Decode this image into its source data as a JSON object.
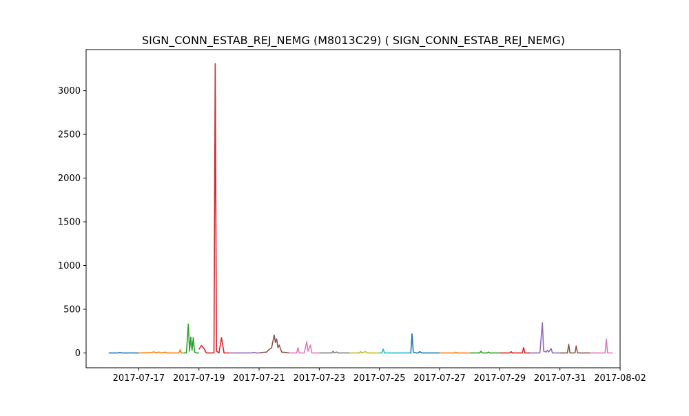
{
  "chart_data": {
    "type": "line",
    "title": "SIGN_CONN_ESTAB_REJ_NEMG (M8013C29) ( SIGN_CONN_ESTAB_REJ_NEMG)",
    "xlabel": "",
    "ylabel": "",
    "x_is_date": true,
    "xlim": [
      "2017-07-15T06:00",
      "2017-08-02T00:00"
    ],
    "ylim": [
      -170,
      3470
    ],
    "xticks": [
      "2017-07-17",
      "2017-07-19",
      "2017-07-21",
      "2017-07-23",
      "2017-07-25",
      "2017-07-27",
      "2017-07-29",
      "2017-07-31",
      "2017-08-02"
    ],
    "yticks": [
      0,
      500,
      1000,
      1500,
      2000,
      2500,
      3000
    ],
    "grid": false,
    "legend": "none",
    "series": [
      {
        "color": "#1f77b4",
        "points": [
          [
            "2017-07-16T00:00",
            0
          ],
          [
            "2017-07-16T08:00",
            0
          ],
          [
            "2017-07-16T09:00",
            5
          ],
          [
            "2017-07-16T10:00",
            0
          ],
          [
            "2017-07-17T00:00",
            0
          ]
        ]
      },
      {
        "color": "#ff7f0e",
        "points": [
          [
            "2017-07-17T00:00",
            0
          ],
          [
            "2017-07-17T10:00",
            3
          ],
          [
            "2017-07-17T12:00",
            12
          ],
          [
            "2017-07-17T14:00",
            0
          ],
          [
            "2017-07-17T16:00",
            10
          ],
          [
            "2017-07-17T18:00",
            0
          ],
          [
            "2017-07-17T21:00",
            8
          ],
          [
            "2017-07-17T23:00",
            0
          ],
          [
            "2017-07-18T08:00",
            0
          ],
          [
            "2017-07-18T09:00",
            35
          ],
          [
            "2017-07-18T10:00",
            0
          ],
          [
            "2017-07-18T12:00",
            0
          ]
        ]
      },
      {
        "color": "#2ca02c",
        "points": [
          [
            "2017-07-18T12:00",
            0
          ],
          [
            "2017-07-18T14:00",
            0
          ],
          [
            "2017-07-18T15:30",
            330
          ],
          [
            "2017-07-18T16:30",
            20
          ],
          [
            "2017-07-18T17:30",
            180
          ],
          [
            "2017-07-18T18:30",
            30
          ],
          [
            "2017-07-18T19:30",
            175
          ],
          [
            "2017-07-18T20:30",
            10
          ],
          [
            "2017-07-18T22:00",
            0
          ],
          [
            "2017-07-19T00:00",
            0
          ]
        ]
      },
      {
        "color": "#d62728",
        "points": [
          [
            "2017-07-19T00:00",
            40
          ],
          [
            "2017-07-19T02:00",
            85
          ],
          [
            "2017-07-19T04:00",
            50
          ],
          [
            "2017-07-19T06:00",
            0
          ],
          [
            "2017-07-19T12:00",
            0
          ],
          [
            "2017-07-19T13:00",
            3310
          ],
          [
            "2017-07-19T14:00",
            20
          ],
          [
            "2017-07-19T16:00",
            0
          ],
          [
            "2017-07-19T18:00",
            175
          ],
          [
            "2017-07-19T20:00",
            0
          ],
          [
            "2017-07-20T00:00",
            0
          ]
        ]
      },
      {
        "color": "#9467bd",
        "points": [
          [
            "2017-07-20T00:00",
            0
          ],
          [
            "2017-07-20T18:00",
            0
          ],
          [
            "2017-07-20T20:00",
            5
          ],
          [
            "2017-07-20T22:00",
            0
          ],
          [
            "2017-07-21T00:00",
            0
          ]
        ]
      },
      {
        "color": "#8c564b",
        "points": [
          [
            "2017-07-21T00:00",
            0
          ],
          [
            "2017-07-21T06:00",
            10
          ],
          [
            "2017-07-21T08:00",
            40
          ],
          [
            "2017-07-21T10:00",
            60
          ],
          [
            "2017-07-21T12:00",
            205
          ],
          [
            "2017-07-21T13:00",
            120
          ],
          [
            "2017-07-21T14:00",
            160
          ],
          [
            "2017-07-21T15:00",
            60
          ],
          [
            "2017-07-21T16:00",
            90
          ],
          [
            "2017-07-21T18:00",
            10
          ],
          [
            "2017-07-22T00:00",
            0
          ]
        ]
      },
      {
        "color": "#e377c2",
        "points": [
          [
            "2017-07-22T00:00",
            0
          ],
          [
            "2017-07-22T06:00",
            0
          ],
          [
            "2017-07-22T07:00",
            60
          ],
          [
            "2017-07-22T08:00",
            0
          ],
          [
            "2017-07-22T12:00",
            0
          ],
          [
            "2017-07-22T14:00",
            130
          ],
          [
            "2017-07-22T15:00",
            20
          ],
          [
            "2017-07-22T17:00",
            90
          ],
          [
            "2017-07-22T18:00",
            0
          ],
          [
            "2017-07-23T00:00",
            0
          ]
        ]
      },
      {
        "color": "#7f7f7f",
        "points": [
          [
            "2017-07-23T00:00",
            0
          ],
          [
            "2017-07-23T10:00",
            0
          ],
          [
            "2017-07-23T11:00",
            20
          ],
          [
            "2017-07-23T12:00",
            0
          ],
          [
            "2017-07-23T14:00",
            10
          ],
          [
            "2017-07-23T15:00",
            0
          ],
          [
            "2017-07-24T00:00",
            0
          ]
        ]
      },
      {
        "color": "#bcbd22",
        "points": [
          [
            "2017-07-24T00:00",
            0
          ],
          [
            "2017-07-24T08:00",
            0
          ],
          [
            "2017-07-24T09:00",
            15
          ],
          [
            "2017-07-24T10:00",
            0
          ],
          [
            "2017-07-24T13:00",
            15
          ],
          [
            "2017-07-24T14:00",
            0
          ],
          [
            "2017-07-25T00:00",
            0
          ]
        ]
      },
      {
        "color": "#17becf",
        "points": [
          [
            "2017-07-25T00:00",
            0
          ],
          [
            "2017-07-25T02:00",
            0
          ],
          [
            "2017-07-25T03:00",
            45
          ],
          [
            "2017-07-25T04:00",
            0
          ],
          [
            "2017-07-26T00:00",
            0
          ]
        ]
      },
      {
        "color": "#1f77b4",
        "points": [
          [
            "2017-07-26T00:00",
            0
          ],
          [
            "2017-07-26T01:00",
            0
          ],
          [
            "2017-07-26T02:00",
            220
          ],
          [
            "2017-07-26T03:00",
            10
          ],
          [
            "2017-07-26T05:00",
            0
          ],
          [
            "2017-07-26T07:00",
            0
          ],
          [
            "2017-07-26T08:00",
            15
          ],
          [
            "2017-07-26T10:00",
            0
          ],
          [
            "2017-07-27T00:00",
            0
          ]
        ]
      },
      {
        "color": "#ff7f0e",
        "points": [
          [
            "2017-07-27T00:00",
            0
          ],
          [
            "2017-07-27T12:00",
            0
          ],
          [
            "2017-07-27T13:00",
            8
          ],
          [
            "2017-07-27T14:00",
            0
          ],
          [
            "2017-07-28T00:00",
            0
          ]
        ]
      },
      {
        "color": "#2ca02c",
        "points": [
          [
            "2017-07-28T00:00",
            0
          ],
          [
            "2017-07-28T08:00",
            0
          ],
          [
            "2017-07-28T09:00",
            20
          ],
          [
            "2017-07-28T10:00",
            0
          ],
          [
            "2017-07-28T14:00",
            0
          ],
          [
            "2017-07-28T15:00",
            10
          ],
          [
            "2017-07-28T16:00",
            0
          ],
          [
            "2017-07-29T00:00",
            0
          ]
        ]
      },
      {
        "color": "#d62728",
        "points": [
          [
            "2017-07-29T00:00",
            0
          ],
          [
            "2017-07-29T08:00",
            0
          ],
          [
            "2017-07-29T09:00",
            15
          ],
          [
            "2017-07-29T10:00",
            0
          ],
          [
            "2017-07-29T18:00",
            0
          ],
          [
            "2017-07-29T19:00",
            60
          ],
          [
            "2017-07-29T20:00",
            0
          ],
          [
            "2017-07-30T00:00",
            0
          ]
        ]
      },
      {
        "color": "#9467bd",
        "points": [
          [
            "2017-07-30T00:00",
            0
          ],
          [
            "2017-07-30T08:00",
            0
          ],
          [
            "2017-07-30T10:00",
            345
          ],
          [
            "2017-07-30T11:00",
            20
          ],
          [
            "2017-07-30T13:00",
            10
          ],
          [
            "2017-07-30T14:00",
            30
          ],
          [
            "2017-07-30T15:00",
            10
          ],
          [
            "2017-07-30T17:00",
            50
          ],
          [
            "2017-07-30T18:00",
            0
          ],
          [
            "2017-07-31T00:00",
            0
          ]
        ]
      },
      {
        "color": "#8c564b",
        "points": [
          [
            "2017-07-31T00:00",
            0
          ],
          [
            "2017-07-31T06:00",
            0
          ],
          [
            "2017-07-31T07:00",
            100
          ],
          [
            "2017-07-31T08:00",
            0
          ],
          [
            "2017-07-31T12:00",
            0
          ],
          [
            "2017-07-31T13:00",
            80
          ],
          [
            "2017-07-31T14:00",
            0
          ],
          [
            "2017-08-01T00:00",
            0
          ]
        ]
      },
      {
        "color": "#e377c2",
        "points": [
          [
            "2017-08-01T00:00",
            0
          ],
          [
            "2017-08-01T12:00",
            0
          ],
          [
            "2017-08-01T13:00",
            160
          ],
          [
            "2017-08-01T14:00",
            0
          ],
          [
            "2017-08-01T18:00",
            0
          ]
        ]
      }
    ]
  }
}
